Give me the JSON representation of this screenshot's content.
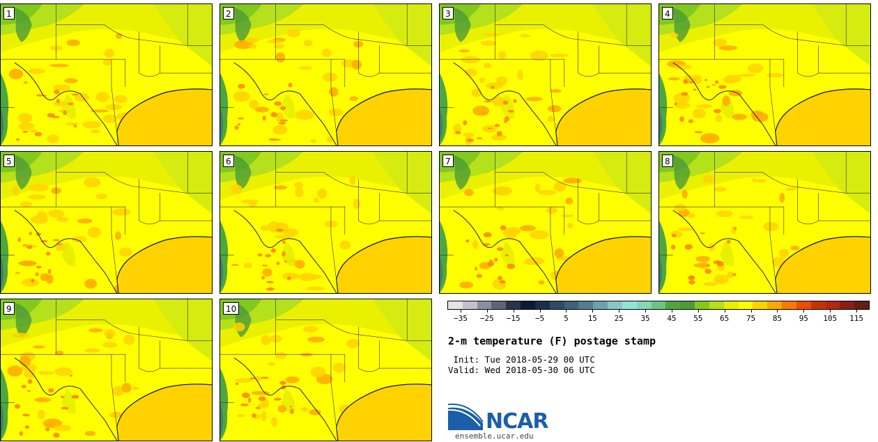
{
  "panels": [
    {
      "label": "1"
    },
    {
      "label": "2"
    },
    {
      "label": "3"
    },
    {
      "label": "4"
    },
    {
      "label": "5"
    },
    {
      "label": "6"
    },
    {
      "label": "7"
    },
    {
      "label": "8"
    },
    {
      "label": "9"
    },
    {
      "label": "10"
    }
  ],
  "legend": {
    "colors": [
      "#e3e3e8",
      "#c0c1c9",
      "#8c909e",
      "#5e6579",
      "#2b3347",
      "#0c1a33",
      "#17304a",
      "#2e4b63",
      "#3f6179",
      "#527e90",
      "#6ba3ad",
      "#87c8c7",
      "#8ce6d4",
      "#86d6b0",
      "#6cc487",
      "#4da640",
      "#4d9b34",
      "#82c91e",
      "#b4e01c",
      "#e8f000",
      "#ffff00",
      "#ffd200",
      "#ffa800",
      "#ff7800",
      "#f04b00",
      "#c83200",
      "#b42814",
      "#8c1e14",
      "#641e14"
    ],
    "ticks": [
      "−35",
      "−25",
      "−15",
      "−5",
      "5",
      "15",
      "25",
      "35",
      "45",
      "55",
      "65",
      "75",
      "85",
      "95",
      "105",
      "115"
    ]
  },
  "title": "2-m temperature (F) postage stamp",
  "init": " Init: Tue 2018-05-29 00 UTC",
  "valid": "Valid: Wed 2018-05-30 06 UTC",
  "logo_text": "NCAR",
  "url": "ensemble.ucar.edu"
}
